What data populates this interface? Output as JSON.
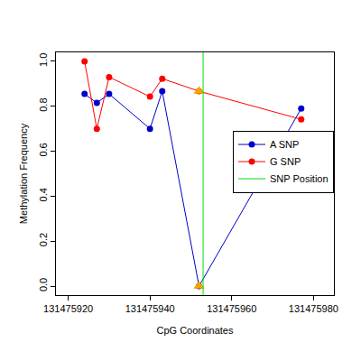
{
  "chart_data": {
    "type": "line",
    "x_label": "CpG Coordinates",
    "y_label": "Methylation Frequency",
    "series": [
      {
        "name": "A SNP",
        "color": "#0000cc",
        "marker": "open-circle",
        "x": [
          131475924,
          131475927,
          131475930,
          131475940,
          131475943,
          131475952,
          131475977
        ],
        "values": [
          0.855,
          0.815,
          0.855,
          0.7,
          0.867,
          0.0,
          0.79
        ]
      },
      {
        "name": "G SNP",
        "color": "#ff0000",
        "marker": "open-circle",
        "x": [
          131475924,
          131475927,
          131475930,
          131475940,
          131475943,
          131475952,
          131475977
        ],
        "values": [
          1.0,
          0.7,
          0.93,
          0.843,
          0.923,
          0.867,
          0.742
        ]
      }
    ],
    "highlighted": {
      "x": 131475952,
      "values": [
        0.867,
        0.0
      ],
      "color": "#f5a300",
      "marker": "triangle-up"
    },
    "snp_position": {
      "name": "SNP Position",
      "x": 131475953,
      "color": "#00e000"
    },
    "xlim": [
      131475917,
      131475985
    ],
    "xticks": [
      131475920,
      131475940,
      131475960,
      131475980
    ],
    "ylim": [
      -0.04,
      1.04
    ],
    "yticks": [
      {
        "value": 0,
        "label": "0.0"
      },
      {
        "value": 0.2,
        "label": "0.2"
      },
      {
        "value": 0.4,
        "label": "0.4"
      },
      {
        "value": 0.6,
        "label": "0.6"
      },
      {
        "value": 0.8,
        "label": "0.8"
      },
      {
        "value": 1,
        "label": "1.0"
      }
    ],
    "legend": "right",
    "grid": false
  }
}
